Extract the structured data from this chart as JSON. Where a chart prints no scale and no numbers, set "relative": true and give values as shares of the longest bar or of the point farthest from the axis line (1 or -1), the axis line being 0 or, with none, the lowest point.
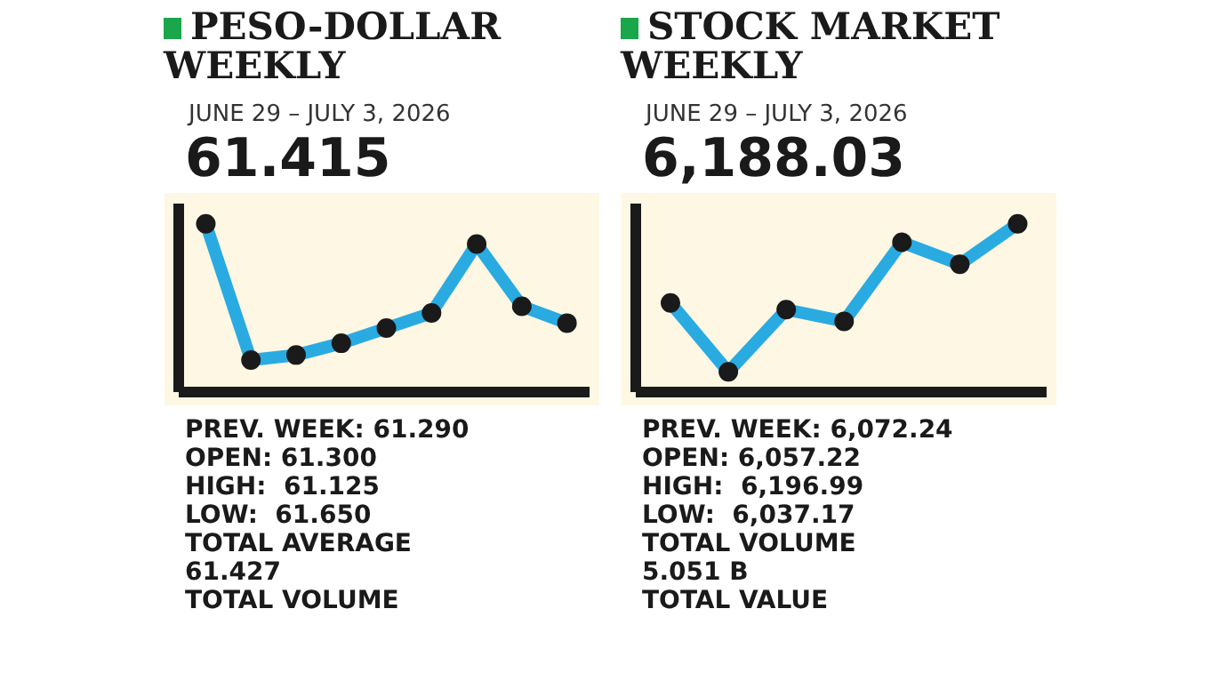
{
  "chart_data": [
    {
      "type": "line",
      "title": "PESO-DOLLAR WEEKLY",
      "subtitle": "JUNE 29 – JULY 3, 2026",
      "relative": true,
      "marker": "circle",
      "categories": [
        null,
        null,
        null,
        null,
        null,
        null,
        null,
        null,
        null
      ],
      "series": [
        {
          "color": "#29abe2",
          "values": [
            1,
            0.19,
            0.22,
            0.29,
            0.38,
            0.47,
            0.88,
            0.51,
            0.41
          ]
        }
      ],
      "annotations": [
        "61.415",
        "PREV. WEEK: 61.290",
        "OPEN: 61.300",
        "HIGH:  61.125",
        "LOW:  61.650",
        "TOTAL AVERAGE",
        "61.427",
        "TOTAL VOLUME"
      ]
    },
    {
      "type": "line",
      "title": "STOCK MARKET WEEKLY",
      "subtitle": "JUNE 29 – JULY 3, 2026",
      "relative": true,
      "marker": "circle",
      "categories": [
        null,
        null,
        null,
        null,
        null,
        null,
        null
      ],
      "series": [
        {
          "color": "#29abe2",
          "values": [
            0.53,
            0.12,
            0.49,
            0.42,
            0.89,
            0.76,
            1
          ]
        }
      ],
      "annotations": [
        "6,188.03",
        "PREV. WEEK: 6,072.24",
        "OPEN: 6,057.22",
        "HIGH:  6,196.99",
        "LOW:  6,037.17",
        "TOTAL VOLUME",
        "5.051 B",
        "TOTAL VALUE"
      ]
    }
  ]
}
